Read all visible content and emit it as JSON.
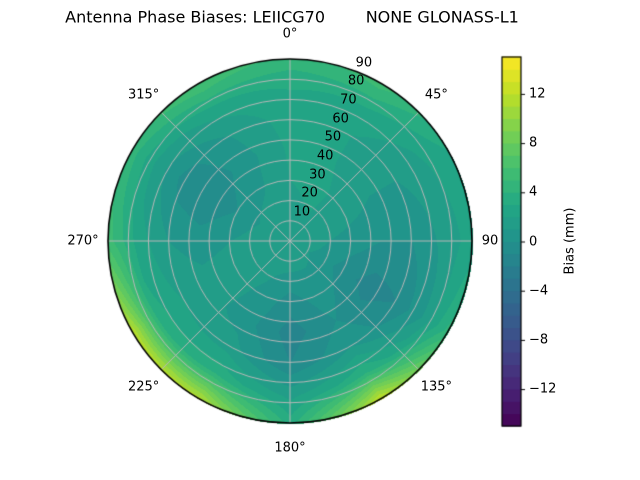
{
  "title": "Antenna Phase Biases: LEIICG70        NONE GLONASS-L1",
  "polar_axis": {
    "theta_labels": [
      "0°",
      "45°",
      "90",
      "135°",
      "180°",
      "225°",
      "270°",
      "315°"
    ],
    "theta_angles_deg": [
      0,
      45,
      90,
      135,
      180,
      225,
      270,
      315
    ],
    "r_labels": [
      "10",
      "20",
      "30",
      "40",
      "50",
      "60",
      "70",
      "80",
      "90"
    ],
    "r_values": [
      10,
      20,
      30,
      40,
      50,
      60,
      70,
      80,
      90
    ],
    "r_max": 90,
    "r_label_angle_deg": 22.5,
    "grid_color": "#b8b8b8",
    "outline_color": "#000000"
  },
  "colorbar": {
    "label": "Bias (mm)",
    "tick_labels": [
      "12",
      "8",
      "4",
      "0",
      "−4",
      "−8",
      "−12"
    ],
    "tick_values": [
      12,
      8,
      4,
      0,
      -4,
      -8,
      -12
    ],
    "vmin": -15,
    "vmax": 15,
    "n_levels": 30,
    "colormap": "viridis",
    "colormap_anchors": [
      "#440154",
      "#482475",
      "#414487",
      "#355f8d",
      "#2a788e",
      "#21918c",
      "#22a884",
      "#44bf70",
      "#7ad151",
      "#bddf26",
      "#fde725"
    ]
  },
  "chart_data": {
    "type": "heatmap",
    "projection": "polar",
    "title": "Antenna Phase Biases: LEIICG70        NONE GLONASS-L1",
    "value_label": "Bias (mm)",
    "value_range": [
      -15,
      15
    ],
    "level_step_mm": 1,
    "azimuth_convention": "degrees clockwise from top (North)",
    "radial_axis": "zenith angle, 0 at center to 90 at rim",
    "azimuth_deg": [
      0,
      30,
      60,
      90,
      120,
      150,
      180,
      210,
      240,
      270,
      300,
      330
    ],
    "zenith_deg": [
      0,
      15,
      30,
      45,
      60,
      75,
      90
    ],
    "bias_mm": [
      [
        1.5,
        1.8,
        2.0,
        2.2,
        2.5,
        3.0,
        4.5
      ],
      [
        1.5,
        2.0,
        2.2,
        2.0,
        2.0,
        2.8,
        5.5
      ],
      [
        1.5,
        1.8,
        1.5,
        1.0,
        1.0,
        1.8,
        3.0
      ],
      [
        1.5,
        1.2,
        0.5,
        0.0,
        0.0,
        1.2,
        2.5
      ],
      [
        1.5,
        0.8,
        -0.5,
        -1.5,
        -1.0,
        1.0,
        4.5
      ],
      [
        1.5,
        1.0,
        0.5,
        0.0,
        1.0,
        4.0,
        12.5
      ],
      [
        1.5,
        1.0,
        -0.5,
        -1.5,
        -1.0,
        1.5,
        3.5
      ],
      [
        1.5,
        1.2,
        0.8,
        0.5,
        1.5,
        4.0,
        11.5
      ],
      [
        1.5,
        1.5,
        1.5,
        1.5,
        2.0,
        3.5,
        12.0
      ],
      [
        1.5,
        1.5,
        1.0,
        0.5,
        1.0,
        2.5,
        5.5
      ],
      [
        1.5,
        1.2,
        0.0,
        -1.0,
        -0.5,
        1.5,
        4.5
      ],
      [
        1.5,
        1.5,
        0.8,
        0.5,
        1.0,
        2.5,
        6.0
      ]
    ]
  }
}
